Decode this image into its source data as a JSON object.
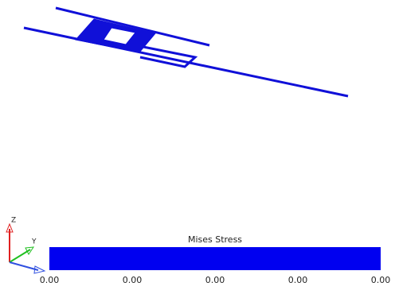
{
  "legend": {
    "title": "Mises Stress",
    "labels": [
      "0.00",
      "0.00",
      "0.00",
      "0.00",
      "0.00"
    ]
  },
  "triad": {
    "z": "Z",
    "y": "Y"
  }
}
